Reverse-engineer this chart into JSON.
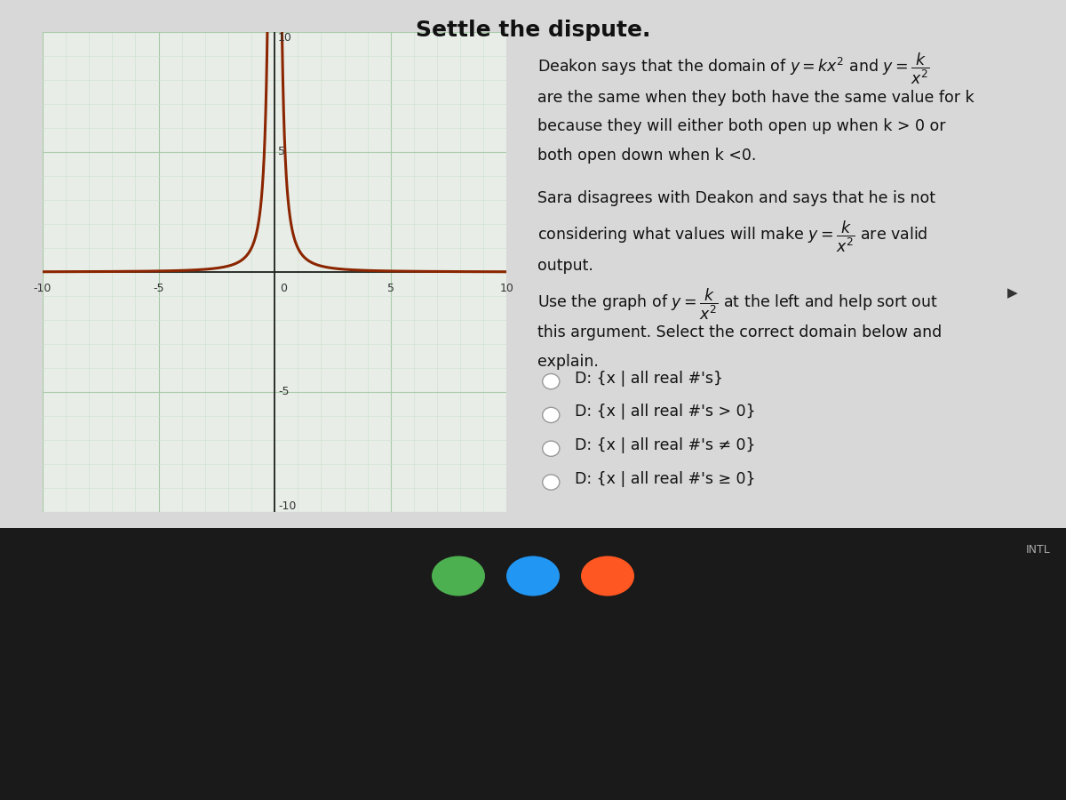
{
  "title": "Settle the dispute.",
  "title_fontsize": 18,
  "title_fontweight": "bold",
  "graph_xlim": [
    -10,
    10
  ],
  "graph_ylim": [
    -10,
    10
  ],
  "k_value": 1,
  "curve_color": "#8B2500",
  "curve_linewidth": 2.2,
  "grid_minor_color": "#cce0cc",
  "grid_major_color": "#aacaaa",
  "axis_color": "#222222",
  "graph_bg": "#e8ede8",
  "right_bg": "#e8e8e8",
  "outer_bg_top": "#d8d8d8",
  "outer_bg_bottom": "#111111",
  "taskbar_color": "#1a1a1a",
  "text_color": "#111111",
  "text_fontsize": 12.5,
  "option1": "D: {x | all real #'s}",
  "option2": "D: {x | all real #'s > 0}",
  "option3": "D: {x | all real #'s ≠ 0}",
  "option4": "D: {x | all real #'s ≥ 0}",
  "taskbar_split": 0.34,
  "intl_text": "INTL"
}
